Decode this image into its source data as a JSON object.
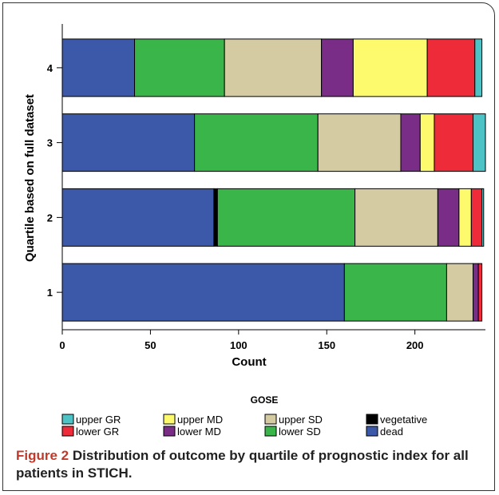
{
  "figure": {
    "caption_label": "Figure 2",
    "caption_text": "Distribution of outcome by quartile of prognostic index for all patients in STICH."
  },
  "chart_data": {
    "type": "bar",
    "orientation": "horizontal",
    "stacked": true,
    "categories": [
      "4",
      "3",
      "2",
      "1"
    ],
    "xlabel": "Count",
    "ylabel": "Quartile based on full dataset",
    "xlim": [
      0,
      240
    ],
    "xticks": [
      0,
      50,
      100,
      150,
      200
    ],
    "grid": false,
    "legend_title": "GOSE",
    "legend_position": "bottom",
    "series": [
      {
        "name": "dead",
        "color": "#3c58a8",
        "values": [
          41,
          75,
          86,
          160
        ]
      },
      {
        "name": "vegetative",
        "color": "#000000",
        "values": [
          0,
          0,
          2,
          0
        ]
      },
      {
        "name": "lower SD",
        "color": "#3ab54a",
        "values": [
          51,
          70,
          78,
          58
        ]
      },
      {
        "name": "upper SD",
        "color": "#d4cba3",
        "values": [
          55,
          47,
          47,
          15
        ]
      },
      {
        "name": "lower MD",
        "color": "#7a2d87",
        "values": [
          18,
          11,
          12,
          3
        ]
      },
      {
        "name": "upper MD",
        "color": "#fdfa6e",
        "values": [
          42,
          8,
          7,
          0
        ]
      },
      {
        "name": "lower GR",
        "color": "#ed2b39",
        "values": [
          27,
          22,
          6,
          2
        ]
      },
      {
        "name": "upper GR",
        "color": "#4ec3c6",
        "values": [
          4,
          7,
          1,
          0
        ]
      }
    ],
    "legend_order": [
      "upper GR",
      "upper MD",
      "upper SD",
      "vegetative",
      "lower GR",
      "lower MD",
      "lower SD",
      "dead"
    ]
  }
}
